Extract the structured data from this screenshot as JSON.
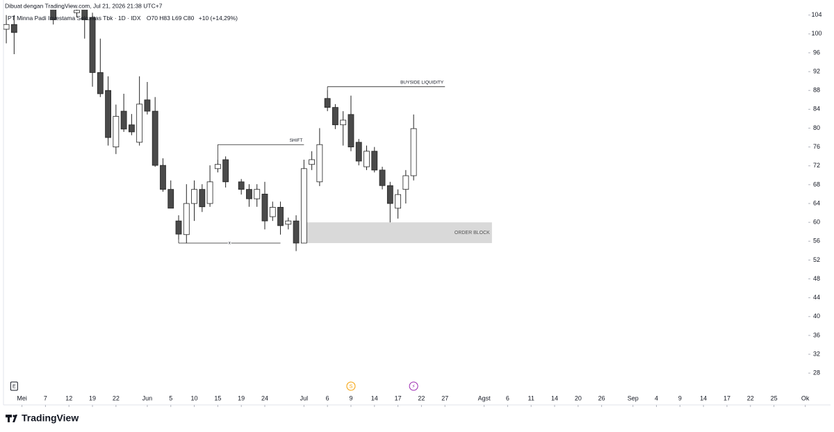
{
  "header": {
    "credit": "Dibuat dengan TradingView.com, Jul 21, 2026 21:38 UTC+7",
    "brand": "TradingView"
  },
  "chart_data": {
    "type": "candlestick",
    "title": "PT Minna Padi Investama Sekuritas Tbk · 1D · IDX",
    "ohlc_text": "O70 H83 L69 C80",
    "change_text": "+10 (+14,29%)",
    "x": [
      0,
      1,
      6,
      9,
      10,
      11,
      12,
      13,
      14,
      15,
      16,
      17,
      18,
      19,
      20,
      21,
      22,
      23,
      24,
      25,
      26,
      27,
      28,
      30,
      31,
      32,
      33,
      34,
      35,
      36,
      37,
      38,
      39,
      40,
      41,
      42,
      43,
      44,
      45,
      46,
      47,
      48,
      49,
      50,
      51,
      52
    ],
    "open": [
      101,
      102,
      106,
      104.5,
      106,
      103.5,
      91.8,
      88,
      76,
      83.6,
      80.7,
      77,
      86,
      83.6,
      72.1,
      67,
      60.3,
      57.4,
      64,
      67,
      64,
      71.4,
      73.3,
      68.6,
      67,
      65,
      66,
      61.2,
      63.2,
      59.6,
      60.3,
      55.6,
      72.3,
      68.6,
      86.3,
      84.4,
      80.7,
      82.9,
      77,
      71.8,
      75.1,
      71.1,
      67.8,
      63,
      67,
      69.9
    ],
    "high": [
      104,
      104,
      107,
      106,
      107,
      104.5,
      99,
      91,
      85,
      87.3,
      83,
      91,
      89.8,
      86.6,
      73.6,
      68.9,
      61.5,
      68.1,
      68.9,
      68.1,
      72.1,
      73.3,
      74,
      69.2,
      68.1,
      68.1,
      68.6,
      64.4,
      64.4,
      61,
      61.5,
      73.3,
      75.1,
      80,
      88.1,
      85.1,
      83.6,
      86.9,
      77.7,
      76.3,
      76,
      71.8,
      68.6,
      67,
      71.1,
      82.9
    ],
    "low": [
      98,
      95.7,
      102,
      103.5,
      99,
      88.8,
      86.6,
      76.3,
      74.5,
      79.2,
      78.5,
      76.3,
      82.9,
      71.8,
      66.5,
      63,
      56.3,
      55.6,
      60.3,
      62.2,
      63.3,
      70.6,
      67.4,
      65.9,
      63.3,
      63.3,
      58.5,
      60.3,
      57.4,
      58.5,
      53.9,
      55.6,
      71.1,
      67.7,
      83.6,
      79.8,
      76.3,
      75.1,
      72.1,
      71.1,
      70.6,
      67,
      60,
      60.8,
      64,
      68.9
    ],
    "close": [
      102,
      100.3,
      103,
      105,
      103,
      91.8,
      87.3,
      78,
      82.5,
      79.8,
      79.2,
      85.1,
      83.6,
      72.1,
      67,
      63,
      57.5,
      64,
      67,
      63.3,
      68.6,
      72.3,
      68.6,
      67,
      65,
      67,
      60.3,
      63.2,
      59.3,
      60.3,
      55.6,
      71.4,
      73.3,
      76.5,
      84.4,
      80.7,
      81.7,
      76,
      73,
      75.1,
      71.1,
      67.8,
      64,
      65.9,
      69.9,
      79.9
    ],
    "up_color": "#ffffff",
    "down_color": "#4a4a4a",
    "outline_color": "#222222",
    "xlim": [
      -0.36,
      102.65
    ],
    "ylim": [
      23.9,
      107.2
    ],
    "yticks": [
      104,
      100,
      96,
      92,
      88,
      84,
      80,
      76,
      72,
      68,
      64,
      60,
      56,
      52,
      48,
      44,
      40,
      36,
      32,
      28
    ],
    "xticks": [
      {
        "value": 2,
        "label": "Mei"
      },
      {
        "value": 5,
        "label": "7"
      },
      {
        "value": 8,
        "label": "12"
      },
      {
        "value": 11,
        "label": "19"
      },
      {
        "value": 14,
        "label": "22"
      },
      {
        "value": 18,
        "label": "Jun"
      },
      {
        "value": 21,
        "label": "5"
      },
      {
        "value": 24,
        "label": "10"
      },
      {
        "value": 27,
        "label": "15"
      },
      {
        "value": 30,
        "label": "19"
      },
      {
        "value": 33,
        "label": "24"
      },
      {
        "value": 38,
        "label": "Jul"
      },
      {
        "value": 41,
        "label": "6"
      },
      {
        "value": 44,
        "label": "9"
      },
      {
        "value": 47,
        "label": "14"
      },
      {
        "value": 50,
        "label": "17"
      },
      {
        "value": 53,
        "label": "22"
      },
      {
        "value": 56,
        "label": "27"
      },
      {
        "value": 61,
        "label": "Agst"
      },
      {
        "value": 64,
        "label": "6"
      },
      {
        "value": 67,
        "label": "11"
      },
      {
        "value": 70,
        "label": "14"
      },
      {
        "value": 73,
        "label": "20"
      },
      {
        "value": 76,
        "label": "26"
      },
      {
        "value": 80,
        "label": "Sep"
      },
      {
        "value": 83,
        "label": "4"
      },
      {
        "value": 86,
        "label": "9"
      },
      {
        "value": 89,
        "label": "14"
      },
      {
        "value": 92,
        "label": "17"
      },
      {
        "value": 95,
        "label": "22"
      },
      {
        "value": 98,
        "label": "25"
      },
      {
        "value": 102,
        "label": "Ok"
      }
    ],
    "annotations": [
      {
        "label": "BUYSIDE LIQUIDITY",
        "level": 88.8,
        "from": 41,
        "to": 56
      },
      {
        "label": "SHIFT",
        "level": 76.5,
        "from": 27,
        "to": 38
      },
      {
        "label": "x",
        "level": 55.6,
        "from": 22,
        "to": 35
      }
    ],
    "order_block": {
      "label": "ORDER BLOCK",
      "low": 55.6,
      "high": 60,
      "from": 38,
      "to": 62,
      "color": "#d9d9d9"
    },
    "events": [
      {
        "label": "E",
        "x": 1
      },
      {
        "label": "S",
        "x": 44
      },
      {
        "label": "⚡",
        "x": 52
      }
    ]
  }
}
